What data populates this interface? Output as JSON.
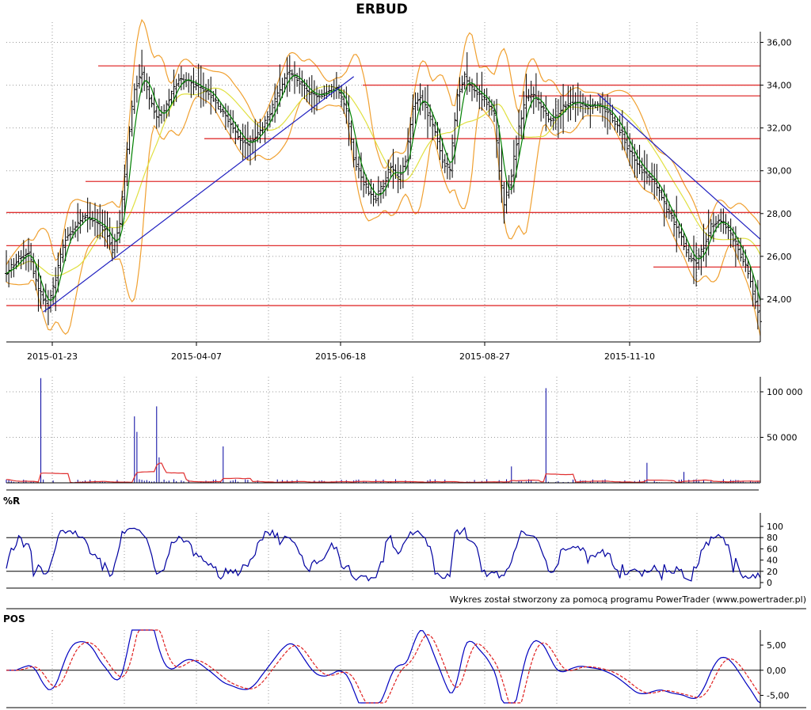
{
  "chart_data": [
    {
      "type": "ohlc",
      "title": "ERBUD",
      "x_ticks": [
        "2015-01-23",
        "2015-04-07",
        "2015-06-18",
        "2015-08-27",
        "2015-11-10"
      ],
      "y_ticks": [
        "24,00",
        "26,00",
        "28,00",
        "30,00",
        "32,00",
        "34,00",
        "36,00"
      ],
      "ylim": [
        22,
        36.5
      ],
      "grid": true,
      "close_series": [
        {
          "x": 0,
          "y": 25.2
        },
        {
          "x": 5,
          "y": 25.9
        },
        {
          "x": 9,
          "y": 26.2
        },
        {
          "x": 13,
          "y": 24.4
        },
        {
          "x": 17,
          "y": 23.6
        },
        {
          "x": 20,
          "y": 25.0
        },
        {
          "x": 24,
          "y": 26.9
        },
        {
          "x": 28,
          "y": 27.4
        },
        {
          "x": 32,
          "y": 27.9
        },
        {
          "x": 36,
          "y": 27.6
        },
        {
          "x": 40,
          "y": 27.3
        },
        {
          "x": 43,
          "y": 26.3
        },
        {
          "x": 46,
          "y": 27.5
        },
        {
          "x": 49,
          "y": 31.0
        },
        {
          "x": 52,
          "y": 33.8
        },
        {
          "x": 55,
          "y": 34.6
        },
        {
          "x": 58,
          "y": 33.4
        },
        {
          "x": 61,
          "y": 32.5
        },
        {
          "x": 64,
          "y": 32.8
        },
        {
          "x": 67,
          "y": 33.6
        },
        {
          "x": 70,
          "y": 34.3
        },
        {
          "x": 74,
          "y": 34.2
        },
        {
          "x": 78,
          "y": 33.9
        },
        {
          "x": 82,
          "y": 33.7
        },
        {
          "x": 86,
          "y": 33.0
        },
        {
          "x": 90,
          "y": 32.4
        },
        {
          "x": 94,
          "y": 31.6
        },
        {
          "x": 98,
          "y": 31.2
        },
        {
          "x": 102,
          "y": 31.7
        },
        {
          "x": 106,
          "y": 32.4
        },
        {
          "x": 110,
          "y": 33.5
        },
        {
          "x": 114,
          "y": 34.6
        },
        {
          "x": 118,
          "y": 34.3
        },
        {
          "x": 122,
          "y": 33.7
        },
        {
          "x": 126,
          "y": 33.5
        },
        {
          "x": 130,
          "y": 33.7
        },
        {
          "x": 134,
          "y": 33.9
        },
        {
          "x": 138,
          "y": 32.8
        },
        {
          "x": 141,
          "y": 30.6
        },
        {
          "x": 144,
          "y": 29.7
        },
        {
          "x": 147,
          "y": 29.0
        },
        {
          "x": 150,
          "y": 28.7
        },
        {
          "x": 153,
          "y": 29.4
        },
        {
          "x": 156,
          "y": 30.2
        },
        {
          "x": 159,
          "y": 29.6
        },
        {
          "x": 162,
          "y": 30.5
        },
        {
          "x": 165,
          "y": 33.0
        },
        {
          "x": 168,
          "y": 33.5
        },
        {
          "x": 171,
          "y": 32.7
        },
        {
          "x": 174,
          "y": 31.8
        },
        {
          "x": 177,
          "y": 30.5
        },
        {
          "x": 180,
          "y": 30.0
        },
        {
          "x": 183,
          "y": 33.5
        },
        {
          "x": 186,
          "y": 34.4
        },
        {
          "x": 189,
          "y": 33.8
        },
        {
          "x": 192,
          "y": 33.6
        },
        {
          "x": 195,
          "y": 33.2
        },
        {
          "x": 198,
          "y": 32.6
        },
        {
          "x": 200,
          "y": 30.0
        },
        {
          "x": 202,
          "y": 28.4
        },
        {
          "x": 205,
          "y": 29.8
        },
        {
          "x": 208,
          "y": 32.0
        },
        {
          "x": 211,
          "y": 33.4
        },
        {
          "x": 214,
          "y": 33.5
        },
        {
          "x": 217,
          "y": 33.0
        },
        {
          "x": 220,
          "y": 32.4
        },
        {
          "x": 223,
          "y": 32.5
        },
        {
          "x": 226,
          "y": 33.0
        },
        {
          "x": 229,
          "y": 33.2
        },
        {
          "x": 232,
          "y": 33.2
        },
        {
          "x": 235,
          "y": 33.0
        },
        {
          "x": 238,
          "y": 33.1
        },
        {
          "x": 241,
          "y": 33.0
        },
        {
          "x": 244,
          "y": 32.8
        },
        {
          "x": 247,
          "y": 32.3
        },
        {
          "x": 250,
          "y": 31.7
        },
        {
          "x": 253,
          "y": 30.9
        },
        {
          "x": 256,
          "y": 30.3
        },
        {
          "x": 259,
          "y": 29.9
        },
        {
          "x": 262,
          "y": 29.6
        },
        {
          "x": 265,
          "y": 29.0
        },
        {
          "x": 268,
          "y": 28.2
        },
        {
          "x": 271,
          "y": 27.6
        },
        {
          "x": 274,
          "y": 26.9
        },
        {
          "x": 277,
          "y": 26.0
        },
        {
          "x": 280,
          "y": 25.7
        },
        {
          "x": 283,
          "y": 26.5
        },
        {
          "x": 286,
          "y": 27.4
        },
        {
          "x": 289,
          "y": 27.7
        },
        {
          "x": 292,
          "y": 27.4
        },
        {
          "x": 295,
          "y": 26.8
        },
        {
          "x": 298,
          "y": 26.1
        },
        {
          "x": 301,
          "y": 25.3
        },
        {
          "x": 304,
          "y": 23.9
        },
        {
          "x": 306,
          "y": 23.0
        }
      ],
      "horizontal_levels": [
        34.9,
        34.0,
        33.5,
        31.5,
        29.5,
        28.05,
        26.5,
        25.5,
        23.7
      ],
      "trendlines": [
        {
          "from": {
            "x": 15,
            "y": 23.4
          },
          "to": {
            "x": 141,
            "y": 34.4
          }
        },
        {
          "from": {
            "x": 240,
            "y": 33.6
          },
          "to": {
            "x": 306,
            "y": 26.8
          }
        }
      ]
    },
    {
      "type": "bar",
      "name": "volume",
      "y_ticks": [
        "50 000",
        "100 000"
      ],
      "ylim": [
        0,
        120000
      ],
      "spikes": [
        {
          "x": 14,
          "y": 115000
        },
        {
          "x": 52,
          "y": 73000
        },
        {
          "x": 53,
          "y": 56000
        },
        {
          "x": 61,
          "y": 84000
        },
        {
          "x": 62,
          "y": 28000
        },
        {
          "x": 88,
          "y": 40000
        },
        {
          "x": 219,
          "y": 104000
        },
        {
          "x": 260,
          "y": 22000
        },
        {
          "x": 205,
          "y": 18000
        },
        {
          "x": 275,
          "y": 12000
        }
      ]
    },
    {
      "type": "line",
      "title": "%R",
      "y_ticks": [
        "0",
        "20",
        "40",
        "60",
        "80",
        "100"
      ],
      "ylim": [
        0,
        100
      ],
      "reference_lines": [
        20,
        80
      ]
    },
    {
      "type": "line",
      "title": "POS",
      "y_ticks": [
        "-5,00",
        "0,00",
        "5,00"
      ],
      "ylim": [
        -6.5,
        8
      ]
    }
  ],
  "credit": "Wykres został stworzony za pomocą programu PowerTrader (www.powertrader.pl)",
  "colors": {
    "price_bar": "#000000",
    "level_line": "#e03030",
    "trendline": "#2020c0",
    "bollinger": "#f0a030",
    "ma_short": "#008000",
    "ma_long": "#e0e040",
    "volume_bar": "#0000a0",
    "volume_ma": "#e03030",
    "wr_line": "#0000a0",
    "pos_line": "#0000c0",
    "pos_signal": "#e02020",
    "grid": "#9a9a9a"
  }
}
